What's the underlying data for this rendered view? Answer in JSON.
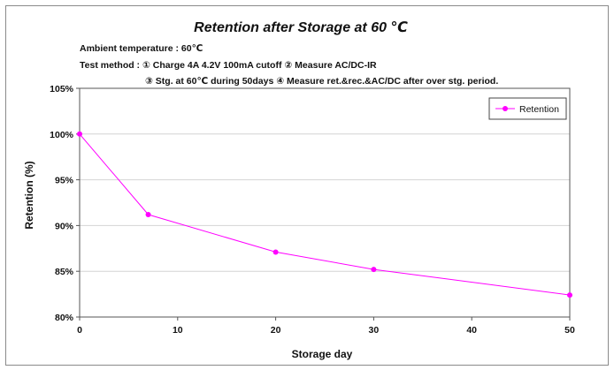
{
  "chart_data": {
    "type": "line",
    "title": "Retention after Storage at 60 ℃",
    "notes": [
      "Ambient temperature : 60℃",
      "Test method : ① Charge  4A 4.2V 100mA cutoff ② Measure AC/DC-IR",
      "③ Stg. at 60℃ during 50days ④ Measure ret.&rec.&AC/DC  after over stg. period."
    ],
    "xlabel": "Storage day",
    "ylabel": "Retention (%)",
    "xlim": [
      0,
      50
    ],
    "ylim": [
      80,
      105
    ],
    "xticks": [
      0,
      10,
      20,
      30,
      40,
      50
    ],
    "yticks": [
      80,
      85,
      90,
      95,
      100,
      105
    ],
    "ytick_labels": [
      "80%",
      "85%",
      "90%",
      "95%",
      "100%",
      "105%"
    ],
    "grid": "horizontal",
    "legend_position": "top-right",
    "series": [
      {
        "name": "Retention",
        "color": "#ff00ff",
        "x": [
          0,
          7,
          20,
          30,
          50
        ],
        "y": [
          100.0,
          91.2,
          87.1,
          85.2,
          82.4
        ]
      }
    ]
  }
}
